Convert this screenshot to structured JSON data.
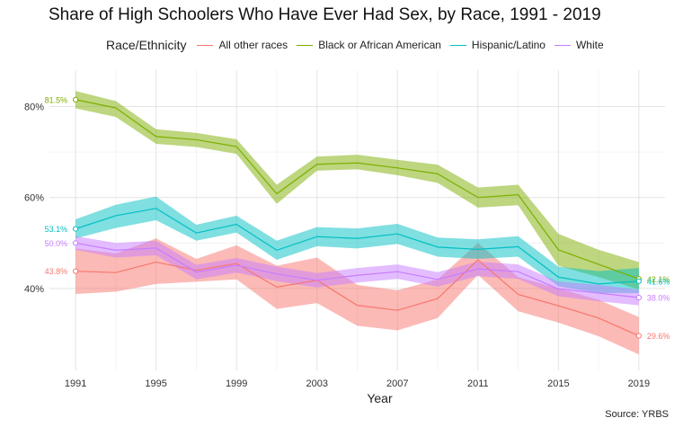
{
  "chart_data": {
    "type": "line",
    "title": "Share of High Schoolers Who Have Ever Had Sex, by Race, 1991 - 2019",
    "xlabel": "Year",
    "ylabel": "",
    "legend_title": "Race/Ethnicity",
    "legend_position": "top",
    "source": "Source: YRBS",
    "grid": true,
    "x": [
      1991,
      1993,
      1995,
      1997,
      1999,
      2001,
      2003,
      2005,
      2007,
      2009,
      2011,
      2013,
      2015,
      2017,
      2019
    ],
    "xticks": [
      "1991",
      "1995",
      "1999",
      "2003",
      "2007",
      "2011",
      "2015",
      "2019"
    ],
    "ylim": [
      22,
      88
    ],
    "yticks": [
      40,
      60,
      80
    ],
    "ytick_labels": [
      "40%",
      "60%",
      "80%"
    ],
    "series": [
      {
        "name": "All other races",
        "color": "#F8766D",
        "values": [
          43.8,
          43.5,
          45.8,
          44.0,
          45.5,
          40.3,
          41.8,
          36.3,
          35.2,
          37.8,
          46.3,
          38.7,
          36.2,
          33.5,
          29.6
        ],
        "lower": [
          38.8,
          39.3,
          41.0,
          41.5,
          42.0,
          35.5,
          36.8,
          31.8,
          30.8,
          33.5,
          43.0,
          35.0,
          32.5,
          29.5,
          25.5
        ],
        "upper": [
          48.8,
          47.7,
          51.0,
          46.5,
          49.5,
          45.0,
          46.8,
          40.8,
          39.6,
          42.0,
          50.0,
          42.5,
          40.0,
          37.5,
          33.7
        ],
        "start_label": "43.8%",
        "end_label": "29.6%"
      },
      {
        "name": "Black or African American",
        "color": "#7CAE00",
        "values": [
          81.5,
          79.7,
          73.4,
          72.7,
          71.2,
          60.8,
          67.3,
          67.6,
          66.5,
          65.2,
          60.0,
          60.6,
          48.5,
          45.3,
          42.1
        ],
        "lower": [
          79.6,
          77.7,
          71.8,
          71.1,
          69.6,
          58.6,
          65.9,
          66.2,
          64.9,
          63.2,
          57.8,
          58.3,
          45.0,
          42.5,
          39.8
        ],
        "upper": [
          83.4,
          81.2,
          75.0,
          74.2,
          72.8,
          62.8,
          69.0,
          69.4,
          68.3,
          67.2,
          62.2,
          62.8,
          52.0,
          48.5,
          45.8
        ],
        "start_label": "81.5%",
        "end_label": "42.1%"
      },
      {
        "name": "Hispanic/Latino",
        "color": "#00BFC4",
        "values": [
          53.1,
          56.0,
          57.6,
          52.2,
          54.1,
          48.4,
          51.4,
          51.0,
          52.0,
          49.1,
          48.6,
          49.2,
          42.5,
          41.0,
          41.6
        ],
        "lower": [
          51.0,
          53.3,
          55.0,
          50.5,
          52.3,
          46.3,
          49.3,
          48.8,
          49.8,
          47.0,
          46.5,
          47.0,
          40.5,
          39.0,
          39.0
        ],
        "upper": [
          55.2,
          58.4,
          60.2,
          54.0,
          56.0,
          50.5,
          53.5,
          53.2,
          54.2,
          51.2,
          50.8,
          51.5,
          44.8,
          43.8,
          44.5
        ],
        "start_label": "53.1%",
        "end_label": "41.6%"
      },
      {
        "name": "White",
        "color": "#C77CFF",
        "values": [
          50.0,
          48.4,
          48.9,
          43.6,
          45.1,
          43.2,
          41.8,
          42.9,
          43.7,
          42.0,
          44.3,
          43.7,
          39.9,
          39.0,
          38.0
        ],
        "lower": [
          48.5,
          46.8,
          47.3,
          42.0,
          43.5,
          41.6,
          40.2,
          41.3,
          42.1,
          40.4,
          42.7,
          42.1,
          38.3,
          37.2,
          36.3
        ],
        "upper": [
          51.5,
          50.0,
          50.5,
          45.2,
          46.7,
          44.8,
          43.4,
          44.5,
          45.3,
          43.6,
          45.9,
          45.3,
          41.5,
          40.8,
          39.7
        ],
        "start_label": "50.0%",
        "end_label": "38.0%"
      }
    ]
  }
}
